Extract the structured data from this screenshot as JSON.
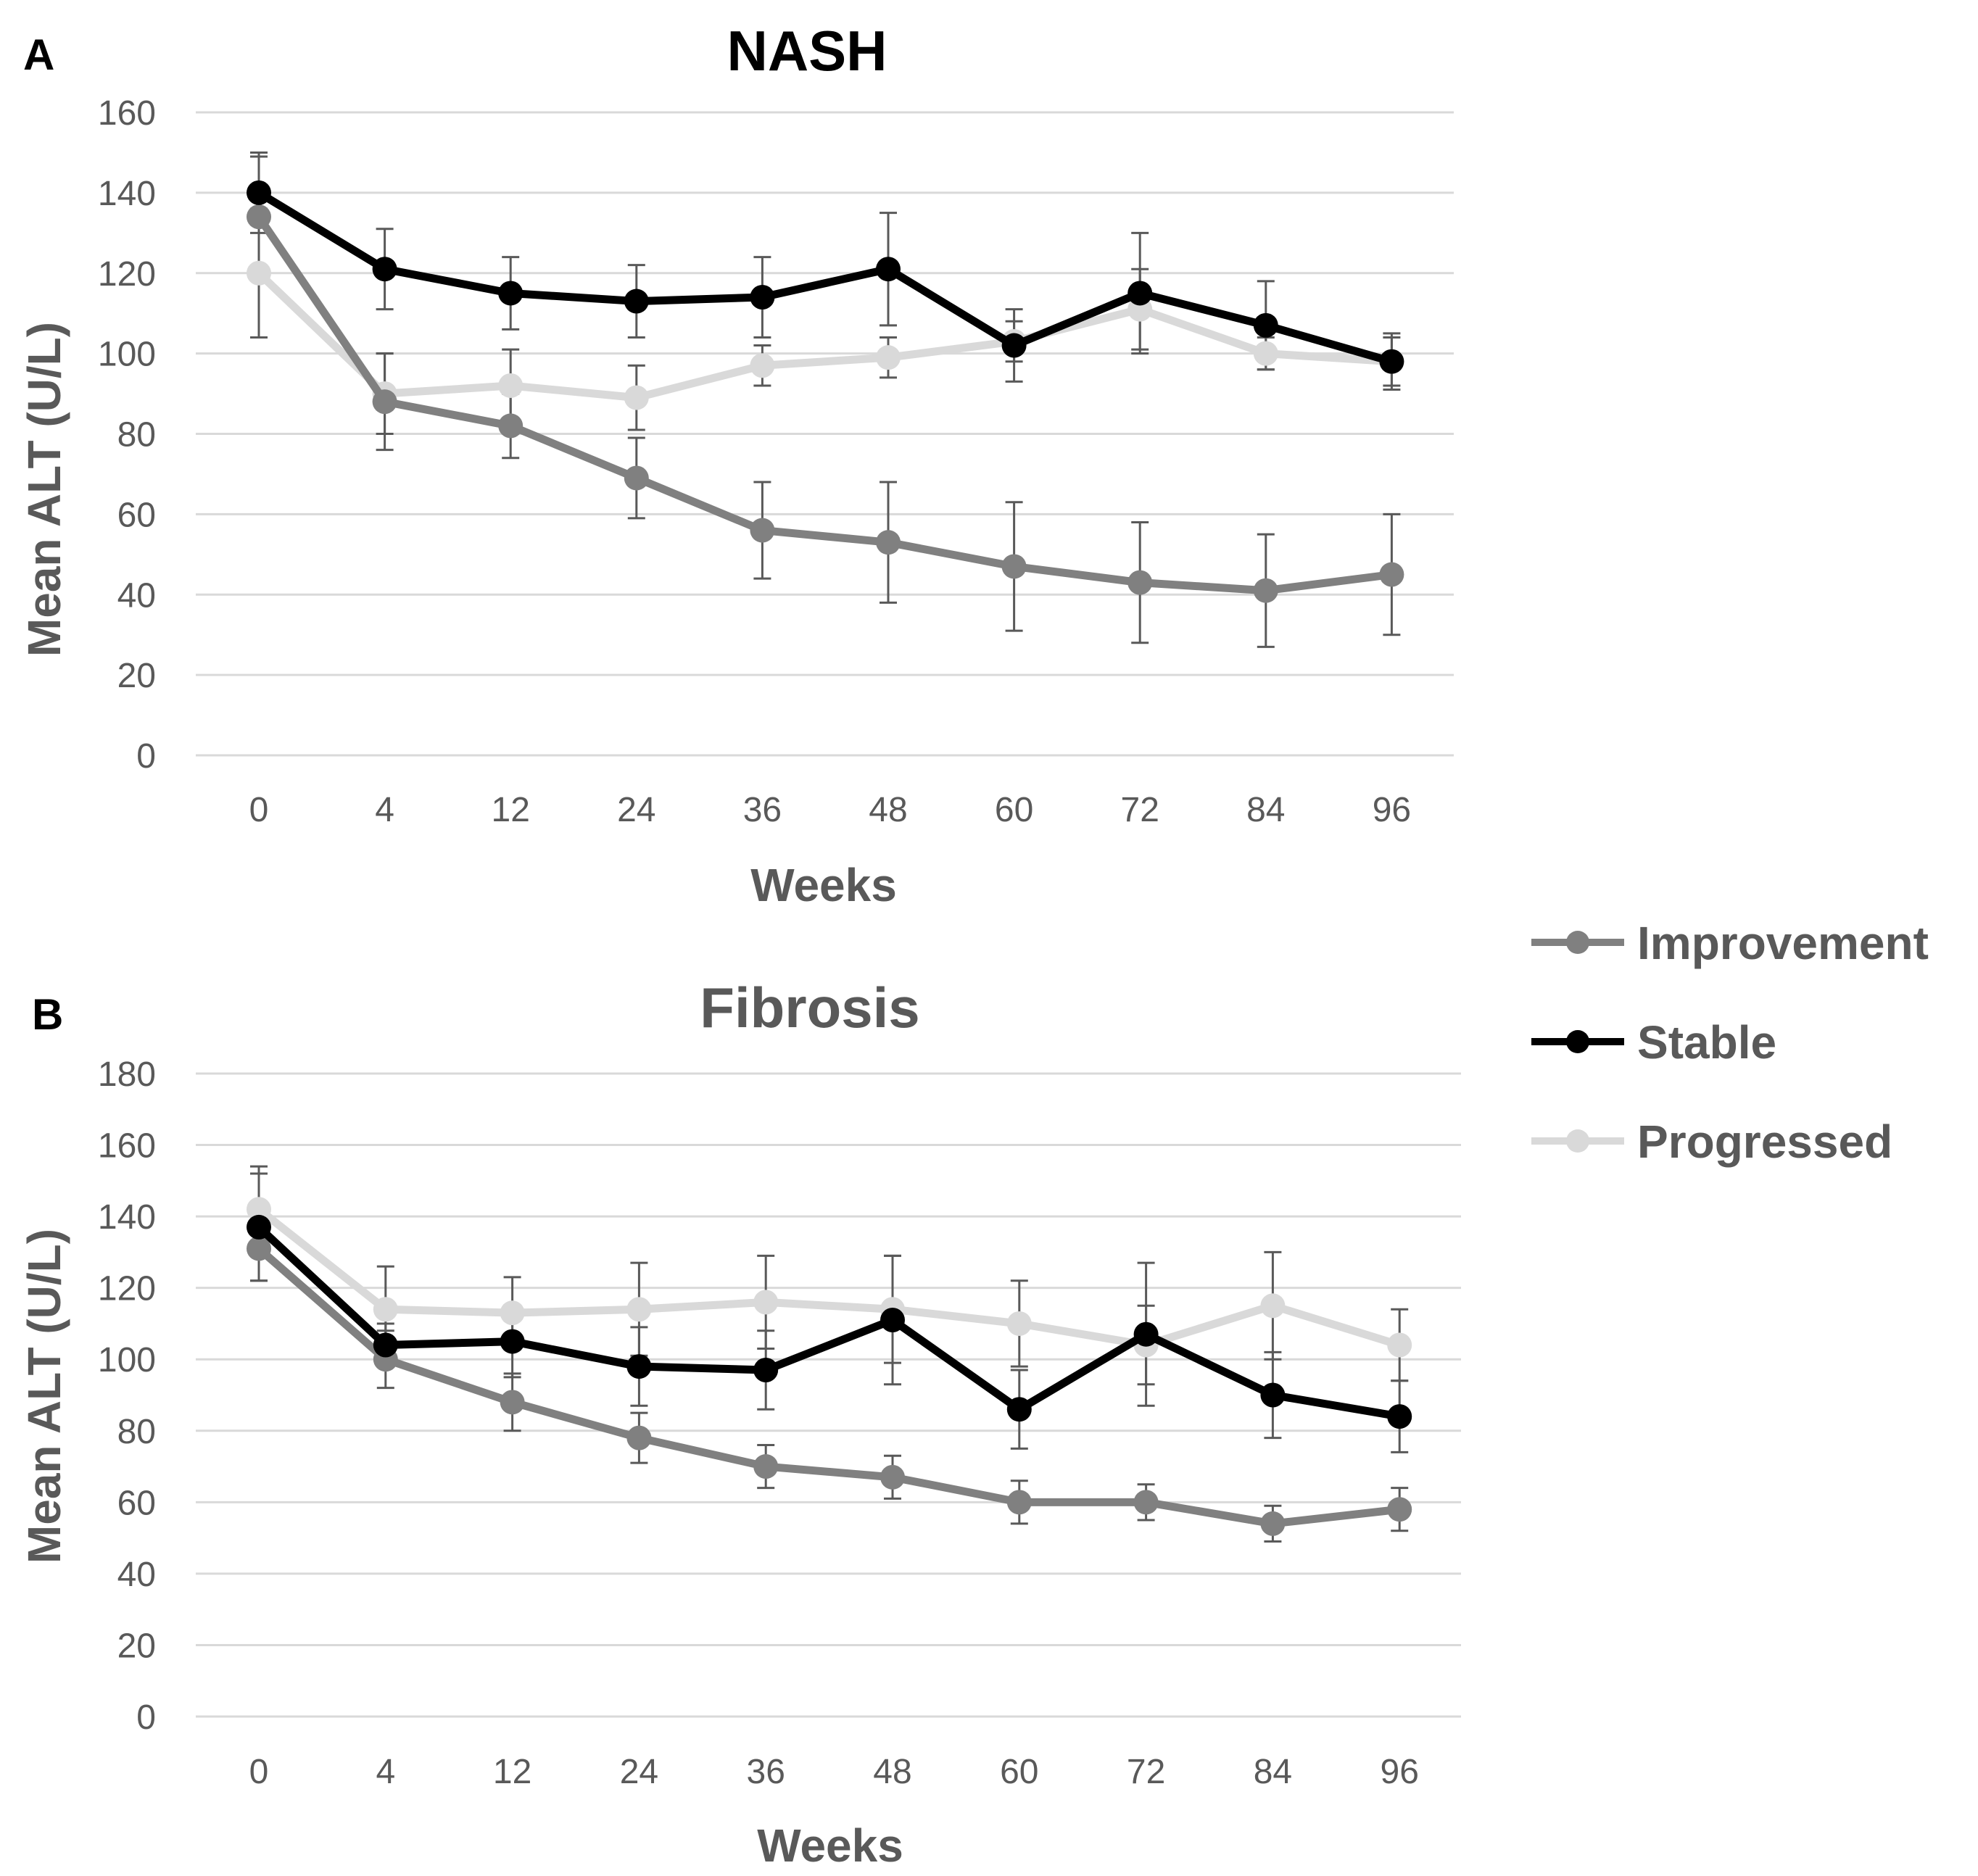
{
  "colors": {
    "Improvement": "#808080",
    "Stable": "#000000",
    "Progressed": "#d9d9d9",
    "title_A": "#000000",
    "title_B": "#595959",
    "axis_text": "#595959",
    "grid": "#d9d9d9",
    "error_bar": "#595959"
  },
  "legend": {
    "placement": "right",
    "items": [
      "Improvement",
      "Stable",
      "Progressed"
    ]
  },
  "chart_data": [
    {
      "type": "line",
      "panel": "A",
      "title": "NASH",
      "xlabel": "Weeks",
      "ylabel": "Mean ALT (U/L)",
      "categories": [
        "0",
        "4",
        "12",
        "24",
        "36",
        "48",
        "60",
        "72",
        "84",
        "96"
      ],
      "ylim": [
        0,
        160
      ],
      "yticks": [
        0,
        20,
        40,
        60,
        80,
        100,
        120,
        140,
        160
      ],
      "grid": true,
      "series": [
        {
          "name": "Improvement",
          "values": [
            134,
            88,
            82,
            69,
            56,
            53,
            47,
            43,
            41,
            45
          ],
          "err": [
            15,
            12,
            8,
            10,
            12,
            15,
            16,
            15,
            14,
            15
          ]
        },
        {
          "name": "Stable",
          "values": [
            140,
            121,
            115,
            113,
            114,
            121,
            102,
            115,
            107,
            98
          ],
          "err": [
            10,
            10,
            9,
            9,
            10,
            14,
            9,
            15,
            11,
            6
          ]
        },
        {
          "name": "Progressed",
          "values": [
            120,
            90,
            92,
            89,
            97,
            99,
            103,
            111,
            100,
            98
          ],
          "err": [
            16,
            10,
            9,
            8,
            5,
            5,
            5,
            10,
            4,
            7
          ]
        }
      ]
    },
    {
      "type": "line",
      "panel": "B",
      "title": "Fibrosis",
      "xlabel": "Weeks",
      "ylabel": "Mean ALT (U/L)",
      "categories": [
        "0",
        "4",
        "12",
        "24",
        "36",
        "48",
        "60",
        "72",
        "84",
        "96"
      ],
      "ylim": [
        0,
        180
      ],
      "yticks": [
        0,
        20,
        40,
        60,
        80,
        100,
        120,
        140,
        160,
        180
      ],
      "grid": true,
      "series": [
        {
          "name": "Improvement",
          "values": [
            131,
            100,
            88,
            78,
            70,
            67,
            60,
            60,
            54,
            58
          ],
          "err": [
            9,
            8,
            8,
            7,
            6,
            6,
            6,
            5,
            5,
            6
          ]
        },
        {
          "name": "Stable",
          "values": [
            137,
            104,
            105,
            98,
            97,
            111,
            86,
            107,
            90,
            84
          ],
          "err": [
            15,
            6,
            10,
            11,
            11,
            18,
            11,
            20,
            12,
            10
          ]
        },
        {
          "name": "Progressed",
          "values": [
            142,
            114,
            113,
            114,
            116,
            114,
            110,
            104,
            115,
            104
          ],
          "err": [
            12,
            12,
            10,
            13,
            13,
            15,
            12,
            11,
            15,
            10
          ]
        }
      ]
    }
  ]
}
